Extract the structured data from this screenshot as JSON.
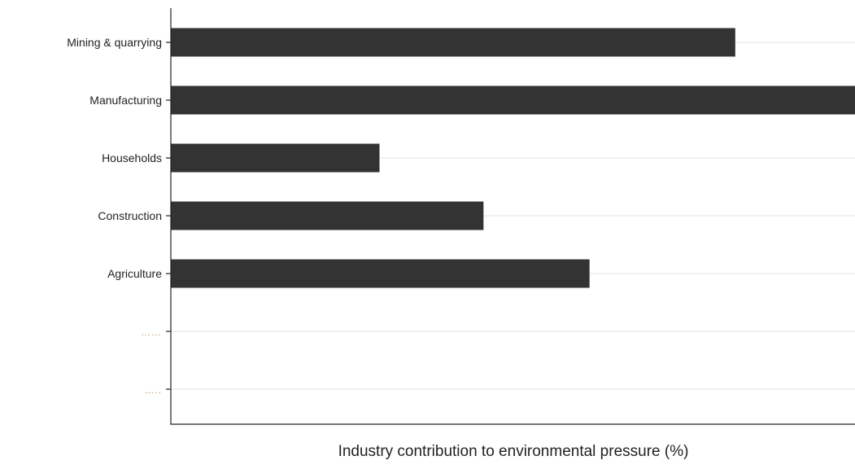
{
  "chart_data": {
    "type": "bar",
    "orientation": "horizontal",
    "categories": [
      "Mining  & quarrying",
      "Manufacturing",
      "Households",
      "Construction",
      "Agriculture",
      "……",
      "….."
    ],
    "values": [
      82.5,
      100,
      30.5,
      45.7,
      61.2,
      null,
      null
    ],
    "xlabel": "Industry contribution to environmental pressure (%)",
    "ylabel": "",
    "xlim": [
      0,
      100
    ],
    "x_tick_labels_shown": false,
    "grid": "horizontal gridlines at each category",
    "legend": "none",
    "colors": {
      "bar": "#333333",
      "grid": "#e6e6e6",
      "axis": "#222222",
      "placeholder_label": "#b89a6a"
    }
  }
}
